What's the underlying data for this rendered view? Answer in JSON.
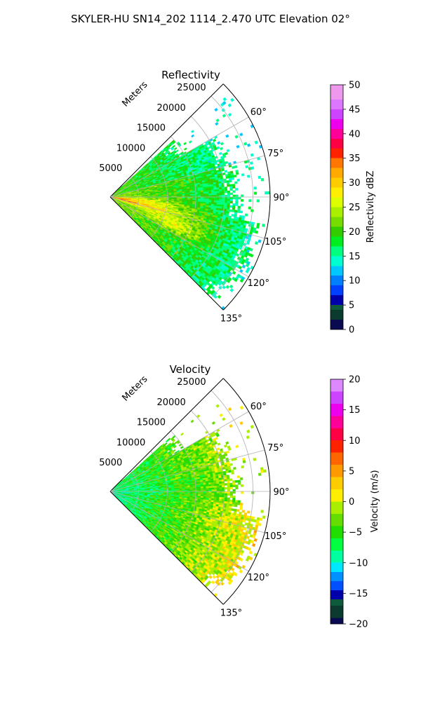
{
  "figure": {
    "title": "SKYLER-HU  SN14_202  1114_2.470 UTC Elevation 02°"
  },
  "chart_data": [
    {
      "type": "heatmap",
      "subtype": "polar-sector",
      "title": "Reflectivity",
      "radial_axis_label": "Meters",
      "radial_ticks": [
        "5000",
        "10000",
        "15000",
        "20000",
        "25000"
      ],
      "radial_tick_values": [
        5000,
        10000,
        15000,
        20000,
        25000
      ],
      "radial_max": 28000,
      "angle_ticks": [
        "60°",
        "75°",
        "90°",
        "105°",
        "120°",
        "135°"
      ],
      "angle_tick_values": [
        60,
        75,
        90,
        105,
        120,
        135
      ],
      "azimuth_range": [
        45,
        135
      ],
      "grid": true,
      "colorbar": {
        "label": "Reflectivity dBZ",
        "range": [
          0,
          50
        ],
        "ticks": [
          "0",
          "5",
          "10",
          "15",
          "20",
          "25",
          "30",
          "35",
          "40",
          "45",
          "50"
        ],
        "tick_values": [
          0,
          5,
          10,
          15,
          20,
          25,
          30,
          35,
          40,
          45,
          50
        ],
        "stops": [
          {
            "v": 0,
            "c": "#0a0a50"
          },
          {
            "v": 2,
            "c": "#0b3a2e"
          },
          {
            "v": 4,
            "c": "#0d5a3c"
          },
          {
            "v": 5,
            "c": "#0000aa"
          },
          {
            "v": 7,
            "c": "#0040ff"
          },
          {
            "v": 9,
            "c": "#0080ff"
          },
          {
            "v": 11,
            "c": "#00c8ff"
          },
          {
            "v": 13,
            "c": "#00ffd0"
          },
          {
            "v": 15,
            "c": "#00ff80"
          },
          {
            "v": 17,
            "c": "#00ee20"
          },
          {
            "v": 19,
            "c": "#33cc00"
          },
          {
            "v": 21,
            "c": "#77dd00"
          },
          {
            "v": 23,
            "c": "#aaee00"
          },
          {
            "v": 25,
            "c": "#ddff00"
          },
          {
            "v": 27,
            "c": "#ffee00"
          },
          {
            "v": 29,
            "c": "#ffcc00"
          },
          {
            "v": 31,
            "c": "#ffaa00"
          },
          {
            "v": 33,
            "c": "#ff7700"
          },
          {
            "v": 35,
            "c": "#ff2200"
          },
          {
            "v": 37,
            "c": "#ff0044"
          },
          {
            "v": 39,
            "c": "#ff0099"
          },
          {
            "v": 41,
            "c": "#ee00ee"
          },
          {
            "v": 43,
            "c": "#cc44ff"
          },
          {
            "v": 45,
            "c": "#dd77ff"
          },
          {
            "v": 47,
            "c": "#ee99ee"
          },
          {
            "v": 50,
            "c": "#fde6fa"
          }
        ]
      }
    },
    {
      "type": "heatmap",
      "subtype": "polar-sector",
      "title": "Velocity",
      "radial_axis_label": "Meters",
      "radial_ticks": [
        "5000",
        "10000",
        "15000",
        "20000",
        "25000"
      ],
      "radial_tick_values": [
        5000,
        10000,
        15000,
        20000,
        25000
      ],
      "radial_max": 28000,
      "angle_ticks": [
        "60°",
        "75°",
        "90°",
        "105°",
        "120°",
        "135°"
      ],
      "angle_tick_values": [
        60,
        75,
        90,
        105,
        120,
        135
      ],
      "azimuth_range": [
        45,
        135
      ],
      "grid": true,
      "colorbar": {
        "label": "Velocity (m/s)",
        "range": [
          -20,
          20
        ],
        "ticks": [
          "−20",
          "−15",
          "−10",
          "−5",
          "0",
          "5",
          "10",
          "15",
          "20"
        ],
        "tick_values": [
          -20,
          -15,
          -10,
          -5,
          0,
          5,
          10,
          15,
          20
        ],
        "stops": [
          {
            "v": -20,
            "c": "#0a0a50"
          },
          {
            "v": -19,
            "c": "#0b3a2e"
          },
          {
            "v": -17,
            "c": "#0d5a3c"
          },
          {
            "v": -16,
            "c": "#0000aa"
          },
          {
            "v": -14.5,
            "c": "#0050ff"
          },
          {
            "v": -13,
            "c": "#0090ff"
          },
          {
            "v": -11.5,
            "c": "#00e8ff"
          },
          {
            "v": -10,
            "c": "#00ffa0"
          },
          {
            "v": -8,
            "c": "#00ff40"
          },
          {
            "v": -6,
            "c": "#22dd00"
          },
          {
            "v": -4,
            "c": "#66dd00"
          },
          {
            "v": -2,
            "c": "#aaee00"
          },
          {
            "v": 0,
            "c": "#ffee00"
          },
          {
            "v": 2,
            "c": "#ffcc00"
          },
          {
            "v": 4,
            "c": "#ff9900"
          },
          {
            "v": 6,
            "c": "#ff6600"
          },
          {
            "v": 8,
            "c": "#ff2200"
          },
          {
            "v": 10,
            "c": "#ff0044"
          },
          {
            "v": 12,
            "c": "#ff0099"
          },
          {
            "v": 14,
            "c": "#ee00ee"
          },
          {
            "v": 16,
            "c": "#cc44ff"
          },
          {
            "v": 18,
            "c": "#dd88ff"
          },
          {
            "v": 20,
            "c": "#fde6fa"
          }
        ]
      }
    }
  ]
}
